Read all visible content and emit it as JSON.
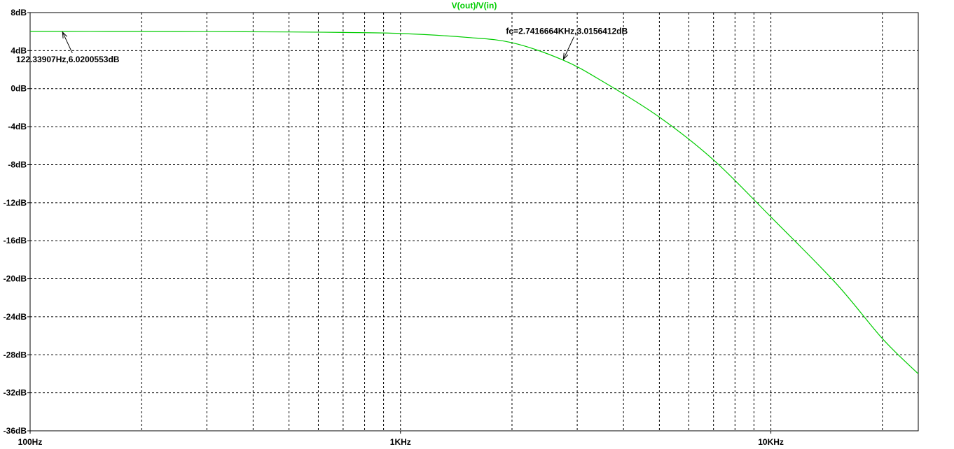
{
  "chart_data": {
    "type": "line",
    "title": "V(out)/V(in)",
    "xlabel": "",
    "ylabel": "",
    "x_scale": "log",
    "xlim": [
      100,
      25000
    ],
    "ylim": [
      -36,
      8
    ],
    "grid": true,
    "y_ticks": [
      8,
      4,
      0,
      -4,
      -8,
      -12,
      -16,
      -20,
      -24,
      -28,
      -32,
      -36
    ],
    "y_tick_labels": [
      "8dB",
      "4dB",
      "0dB",
      "-4dB",
      "-8dB",
      "-12dB",
      "-16dB",
      "-20dB",
      "-24dB",
      "-28dB",
      "-32dB",
      "-36dB"
    ],
    "x_tick_labels": [
      {
        "x": 100,
        "label": "100Hz"
      },
      {
        "x": 1000,
        "label": "1KHz"
      },
      {
        "x": 10000,
        "label": "10KHz"
      }
    ],
    "x_minor_grid": [
      200,
      300,
      400,
      500,
      600,
      700,
      800,
      900,
      2000,
      3000,
      4000,
      5000,
      6000,
      7000,
      8000,
      9000,
      20000
    ],
    "series": [
      {
        "name": "",
        "color": "#00cc00",
        "x": [
          100,
          122.34,
          200,
          300,
          500,
          700,
          1000,
          1500,
          2000,
          2741.67,
          3500,
          5000,
          7000,
          10000,
          15000,
          20000,
          25000
        ],
        "y": [
          6.02,
          6.02,
          6.01,
          6.0,
          5.96,
          5.91,
          5.8,
          5.4,
          4.83,
          3.02,
          0.8,
          -3.0,
          -7.5,
          -13.5,
          -20.5,
          -26.3,
          -30.0
        ]
      }
    ],
    "annotations": [
      {
        "text": "122.33907Hz,6.0200553dB",
        "x": 122.34,
        "y": 6.02
      },
      {
        "text": "fc=2.7416664KHz,3.0156412dB",
        "x": 2741.67,
        "y": 3.02
      }
    ]
  }
}
